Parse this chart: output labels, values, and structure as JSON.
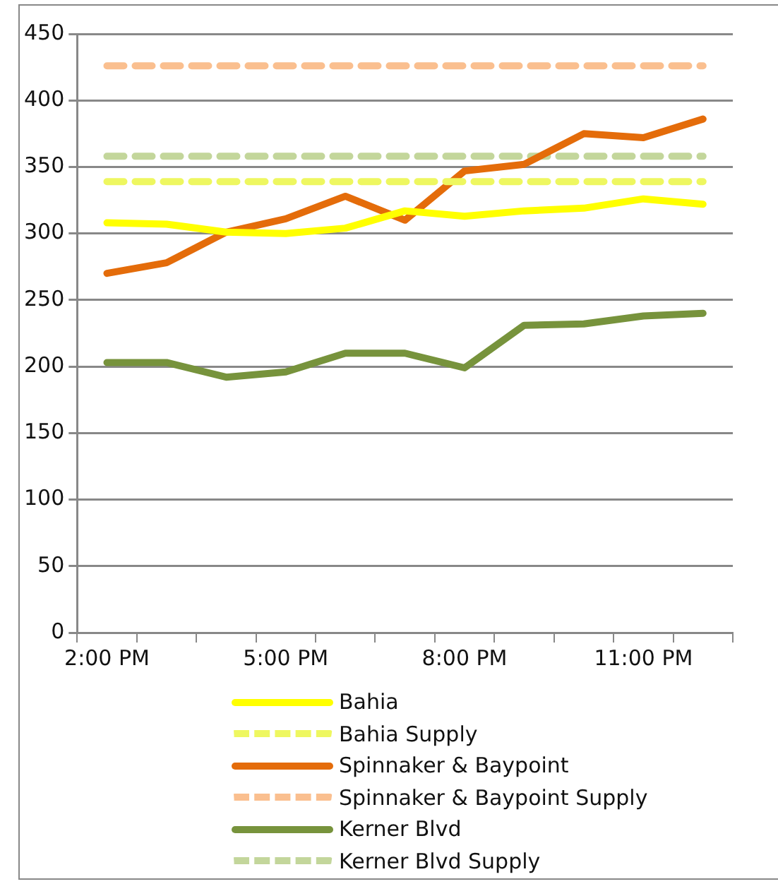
{
  "chart_data": {
    "type": "line",
    "categories": [
      "2:00 PM",
      null,
      null,
      "5:00 PM",
      null,
      null,
      "8:00 PM",
      null,
      null,
      "11:00 PM",
      null
    ],
    "series": [
      {
        "name": "Bahia",
        "color": "#ffff00",
        "line_style": "solid",
        "values": [
          308,
          307,
          301,
          300,
          304,
          317,
          313,
          317,
          319,
          326,
          322
        ]
      },
      {
        "name": "Bahia Supply",
        "color": "#eef760",
        "line_style": "dashed",
        "values": [
          339,
          339,
          339,
          339,
          339,
          339,
          339,
          339,
          339,
          339,
          339
        ]
      },
      {
        "name": "Spinnaker & Baypoint",
        "color": "#e46c0a",
        "line_style": "solid",
        "values": [
          270,
          278,
          301,
          311,
          328,
          310,
          347,
          352,
          375,
          372,
          386
        ]
      },
      {
        "name": "Spinnaker & Baypoint Supply",
        "color": "#fabf8f",
        "line_style": "dashed",
        "values": [
          426,
          426,
          426,
          426,
          426,
          426,
          426,
          426,
          426,
          426,
          426
        ]
      },
      {
        "name": "Kerner Blvd",
        "color": "#77933c",
        "line_style": "solid",
        "values": [
          203,
          203,
          192,
          196,
          210,
          210,
          199,
          231,
          232,
          238,
          240
        ]
      },
      {
        "name": "Kerner Blvd Supply",
        "color": "#c3d69b",
        "line_style": "dashed",
        "values": [
          358,
          358,
          358,
          358,
          358,
          358,
          358,
          358,
          358,
          358,
          358
        ]
      }
    ],
    "ylim": [
      0,
      450
    ],
    "yticks": [
      0,
      50,
      100,
      150,
      200,
      250,
      300,
      350,
      400,
      450
    ],
    "grid": "y",
    "legend": "bottom",
    "marker": "none"
  }
}
